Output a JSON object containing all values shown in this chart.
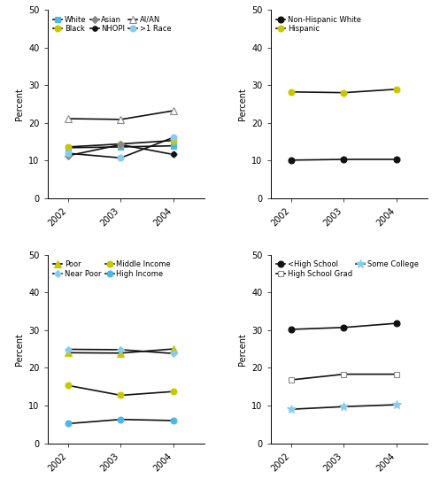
{
  "years": [
    2002,
    2003,
    2004
  ],
  "race": {
    "White": {
      "values": [
        13.4,
        13.6,
        13.9
      ],
      "mcolor": "#4cb8e8",
      "marker": "s",
      "ms": 5,
      "mfc": "#4cb8e8",
      "mec": "#4cb8e8"
    },
    "Black": {
      "values": [
        13.6,
        14.4,
        15.3
      ],
      "mcolor": "#c8c800",
      "marker": "o",
      "ms": 5,
      "mfc": "#c8c800",
      "mec": "#c8c800"
    },
    "Asian": {
      "values": [
        11.3,
        14.2,
        11.6
      ],
      "mcolor": "#888888",
      "marker": "D",
      "ms": 4,
      "mfc": "#888888",
      "mec": "#888888"
    },
    "NHOPI": {
      "values": [
        null,
        null,
        11.6
      ],
      "mcolor": "#111111",
      "marker": "o",
      "ms": 4,
      "mfc": "#111111",
      "mec": "#111111"
    },
    "AI/AN": {
      "values": [
        21.1,
        20.9,
        23.2
      ],
      "mcolor": "#888888",
      "marker": "^",
      "ms": 6,
      "mfc": "white",
      "mec": "#888888"
    },
    ">1 Race": {
      "values": [
        11.9,
        10.7,
        16.1
      ],
      "mcolor": "#88ccee",
      "marker": "o",
      "ms": 5,
      "mfc": "#88ccee",
      "mec": "#88ccee"
    }
  },
  "ethnicity": {
    "Non-Hispanic White": {
      "values": [
        10.1,
        10.3,
        10.3
      ],
      "mcolor": "#111111",
      "marker": "o",
      "ms": 5,
      "mfc": "#111111",
      "mec": "#111111",
      "ls": "-"
    },
    "Hispanic": {
      "values": [
        28.2,
        28.0,
        28.9
      ],
      "mcolor": "#c8c800",
      "marker": "o",
      "ms": 5,
      "mfc": "#c8c800",
      "mec": "#c8c800",
      "ls": "-"
    }
  },
  "income": {
    "Poor": {
      "values": [
        24.0,
        23.9,
        25.0
      ],
      "mcolor": "#c8c800",
      "marker": "^",
      "ms": 6,
      "mfc": "#c8c800",
      "mec": "#c8c800"
    },
    "Near Poor": {
      "values": [
        24.9,
        24.8,
        23.8
      ],
      "mcolor": "#88ccee",
      "marker": "D",
      "ms": 4,
      "mfc": "#88ccee",
      "mec": "#88ccee"
    },
    "Middle Income": {
      "values": [
        15.3,
        12.7,
        13.7
      ],
      "mcolor": "#c8c800",
      "marker": "o",
      "ms": 5,
      "mfc": "#c8c800",
      "mec": "#c8c800"
    },
    "High Income": {
      "values": [
        5.2,
        6.3,
        6.0
      ],
      "mcolor": "#4cb8e8",
      "marker": "o",
      "ms": 5,
      "mfc": "#4cb8e8",
      "mec": "#4cb8e8"
    }
  },
  "education": {
    "<High School": {
      "values": [
        30.2,
        30.7,
        31.8
      ],
      "mcolor": "#111111",
      "marker": "o",
      "ms": 5,
      "mfc": "#111111",
      "mec": "#111111"
    },
    "High School Grad": {
      "values": [
        16.8,
        18.3,
        18.3
      ],
      "mcolor": "#888888",
      "marker": "s",
      "ms": 5,
      "mfc": "white",
      "mec": "#888888"
    },
    "Some College": {
      "values": [
        9.0,
        9.7,
        10.2
      ],
      "mcolor": "#88ccee",
      "marker": "*",
      "ms": 7,
      "mfc": "#88ccee",
      "mec": "#88ccee"
    }
  },
  "line_color": "#111111",
  "line_width": 1.2,
  "ylim": [
    0,
    50
  ],
  "yticks": [
    0,
    10,
    20,
    30,
    40,
    50
  ],
  "ylabel": "Percent"
}
